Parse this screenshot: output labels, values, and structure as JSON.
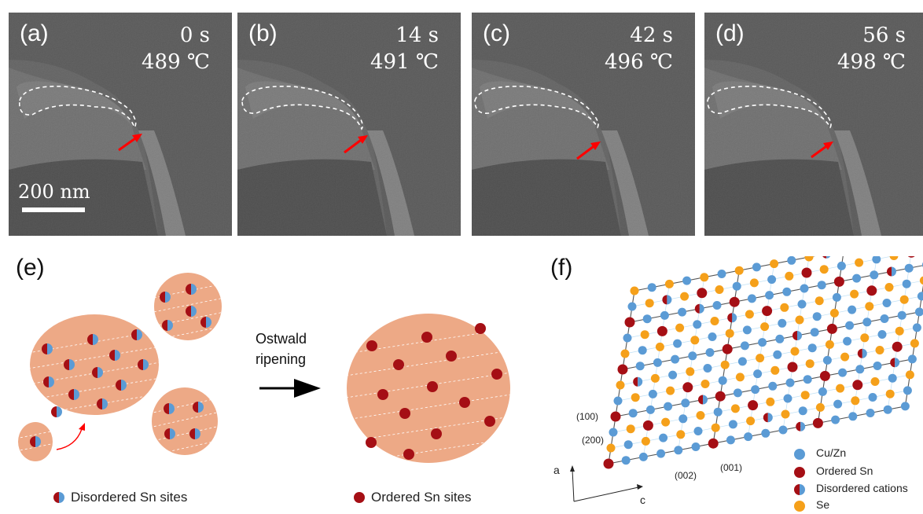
{
  "tem_panels": [
    {
      "label": "(a)",
      "time": "0 s",
      "temp": "489 ℃"
    },
    {
      "label": "(b)",
      "time": "14 s",
      "temp": "491 ℃"
    },
    {
      "label": "(c)",
      "time": "42 s",
      "temp": "496 ℃"
    },
    {
      "label": "(d)",
      "time": "56 s",
      "temp": "498 ℃"
    }
  ],
  "scale_bar": "200 nm",
  "panel_e": {
    "label": "(e)",
    "process_label_line1": "Ostwald",
    "process_label_line2": "ripening",
    "legend_disordered": "Disordered Sn sites",
    "legend_ordered": "Ordered Sn sites"
  },
  "panel_f": {
    "label": "(f)",
    "plane_100": "(100)",
    "plane_200": "(200)",
    "plane_002": "(002)",
    "plane_001": "(001)",
    "axis_a": "a",
    "axis_c": "c",
    "legend": [
      "Cu/Zn",
      "Ordered Sn",
      "Disordered cations",
      "Se"
    ]
  },
  "colors": {
    "particle": "#eda986",
    "cu_zn": "#5b9bd5",
    "ordered_sn": "#a50f15",
    "se": "#f5a01a",
    "arrow_red": "#ff0000"
  }
}
